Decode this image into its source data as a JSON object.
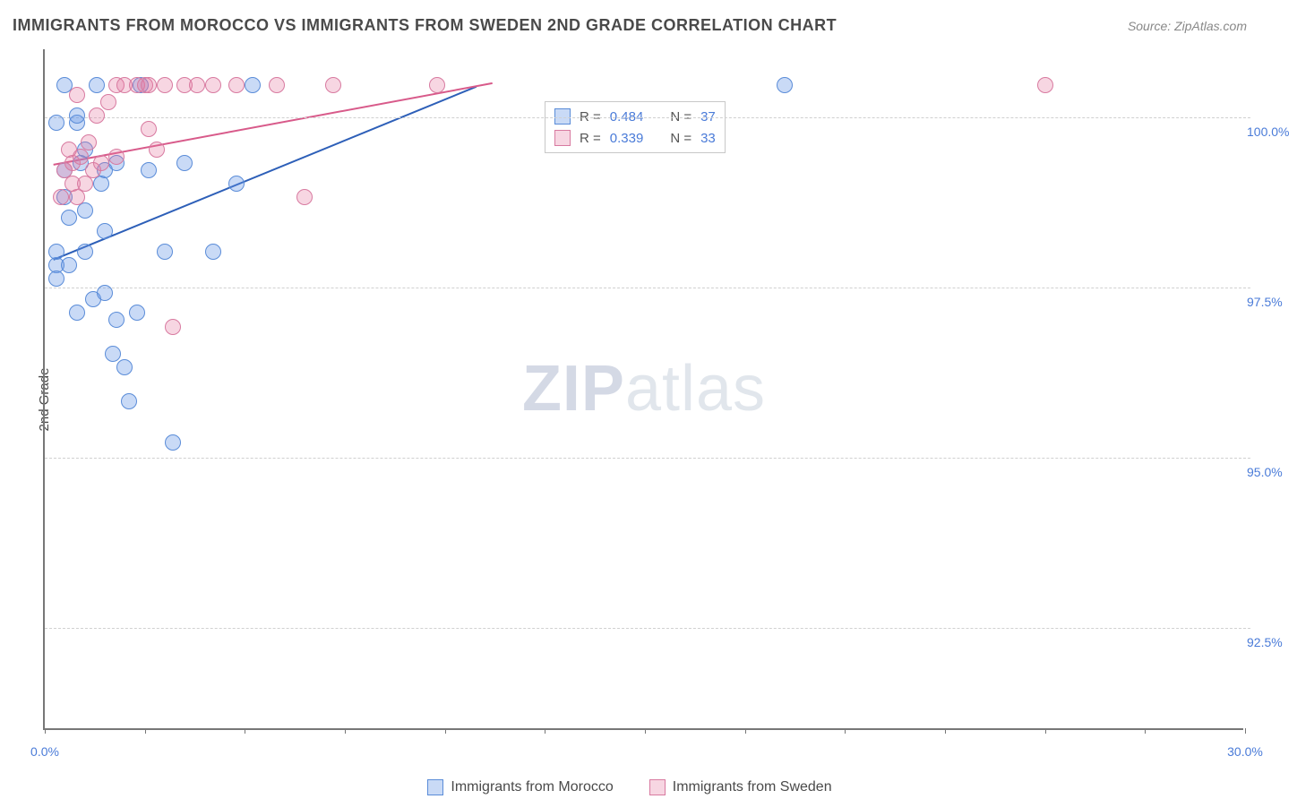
{
  "title": "IMMIGRANTS FROM MOROCCO VS IMMIGRANTS FROM SWEDEN 2ND GRADE CORRELATION CHART",
  "source_label": "Source: ",
  "source_name": "ZipAtlas.com",
  "y_axis_label": "2nd Grade",
  "watermark_bold": "ZIP",
  "watermark_light": "atlas",
  "chart": {
    "type": "scatter",
    "background_color": "#ffffff",
    "grid_color": "#d0d0d0",
    "axis_color": "#777777",
    "text_color": "#4a4a4a",
    "value_color": "#4a7bd8",
    "marker_radius": 9,
    "marker_opacity": 0.55,
    "line_width": 2,
    "xlim": [
      0,
      30
    ],
    "ylim": [
      91,
      101
    ],
    "x_ticks": [
      0,
      2.5,
      5,
      7.5,
      10,
      12.5,
      15,
      17.5,
      20,
      22.5,
      25,
      27.5,
      30
    ],
    "x_tick_labels": {
      "0": "0.0%",
      "30": "30.0%"
    },
    "y_gridlines": [
      100.0,
      97.5,
      95.0,
      92.5
    ],
    "y_tick_labels": {
      "100.0": "100.0%",
      "97.5": "97.5%",
      "95.0": "95.0%",
      "92.5": "92.5%"
    },
    "series": [
      {
        "name": "Immigrants from Morocco",
        "color_fill": "rgba(100,150,230,0.35)",
        "color_stroke": "#5a8cd8",
        "line_color": "#2d5fb8",
        "legend_sq_fill": "rgba(100,150,230,0.35)",
        "legend_sq_stroke": "#5a8cd8",
        "R": "0.484",
        "N": "37",
        "regression": {
          "x1": 0.2,
          "y1": 97.9,
          "x2": 10.8,
          "y2": 100.45
        },
        "points": [
          [
            0.3,
            97.8
          ],
          [
            0.3,
            97.6
          ],
          [
            0.3,
            98.0
          ],
          [
            0.3,
            99.9
          ],
          [
            0.5,
            98.8
          ],
          [
            0.5,
            99.2
          ],
          [
            0.5,
            100.45
          ],
          [
            0.6,
            97.8
          ],
          [
            0.6,
            98.5
          ],
          [
            0.8,
            99.9
          ],
          [
            0.8,
            97.1
          ],
          [
            0.8,
            100.0
          ],
          [
            0.9,
            99.3
          ],
          [
            1.0,
            98.6
          ],
          [
            1.0,
            99.5
          ],
          [
            1.0,
            98.0
          ],
          [
            1.2,
            97.3
          ],
          [
            1.3,
            100.45
          ],
          [
            1.4,
            99.0
          ],
          [
            1.5,
            99.2
          ],
          [
            1.5,
            97.4
          ],
          [
            1.5,
            98.3
          ],
          [
            1.7,
            96.5
          ],
          [
            1.8,
            99.3
          ],
          [
            1.8,
            97.0
          ],
          [
            2.0,
            96.3
          ],
          [
            2.1,
            95.8
          ],
          [
            2.3,
            97.1
          ],
          [
            2.4,
            100.45
          ],
          [
            2.6,
            99.2
          ],
          [
            3.0,
            98.0
          ],
          [
            3.2,
            95.2
          ],
          [
            3.5,
            99.3
          ],
          [
            4.2,
            98.0
          ],
          [
            4.8,
            99.0
          ],
          [
            5.2,
            100.45
          ],
          [
            18.5,
            100.45
          ]
        ]
      },
      {
        "name": "Immigrants from Sweden",
        "color_fill": "rgba(230,120,160,0.30)",
        "color_stroke": "#d87aa0",
        "line_color": "#d85a8a",
        "legend_sq_fill": "rgba(230,120,160,0.30)",
        "legend_sq_stroke": "#d87aa0",
        "R": "0.339",
        "N": "33",
        "regression": {
          "x1": 0.2,
          "y1": 99.3,
          "x2": 11.2,
          "y2": 100.5
        },
        "points": [
          [
            0.4,
            98.8
          ],
          [
            0.5,
            99.2
          ],
          [
            0.6,
            99.5
          ],
          [
            0.7,
            99.0
          ],
          [
            0.7,
            99.3
          ],
          [
            0.8,
            100.3
          ],
          [
            0.8,
            98.8
          ],
          [
            0.9,
            99.4
          ],
          [
            1.0,
            99.0
          ],
          [
            1.1,
            99.6
          ],
          [
            1.2,
            99.2
          ],
          [
            1.3,
            100.0
          ],
          [
            1.4,
            99.3
          ],
          [
            1.6,
            100.2
          ],
          [
            1.8,
            99.4
          ],
          [
            1.8,
            100.45
          ],
          [
            2.0,
            100.45
          ],
          [
            2.3,
            100.45
          ],
          [
            2.5,
            100.45
          ],
          [
            2.6,
            99.8
          ],
          [
            2.6,
            100.45
          ],
          [
            2.8,
            99.5
          ],
          [
            3.0,
            100.45
          ],
          [
            3.2,
            96.9
          ],
          [
            3.5,
            100.45
          ],
          [
            3.8,
            100.45
          ],
          [
            4.2,
            100.45
          ],
          [
            4.8,
            100.45
          ],
          [
            5.8,
            100.45
          ],
          [
            6.5,
            98.8
          ],
          [
            7.2,
            100.45
          ],
          [
            9.8,
            100.45
          ],
          [
            25.0,
            100.45
          ]
        ]
      }
    ]
  },
  "legend_box": {
    "R_label": "R = ",
    "N_label": "N = "
  },
  "bottom_legend_label_1": "Immigrants from Morocco",
  "bottom_legend_label_2": "Immigrants from Sweden"
}
